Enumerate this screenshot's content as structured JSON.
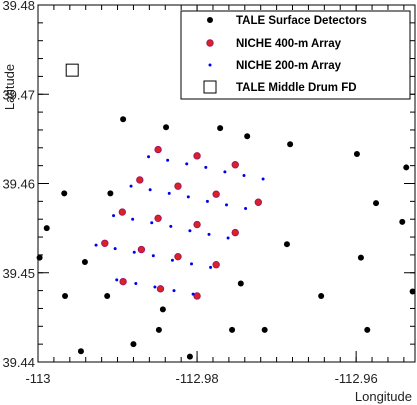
{
  "chart_data": {
    "type": "scatter",
    "xlabel": "Longitude",
    "ylabel": "Latitude",
    "xlim": [
      -113.0,
      -112.9526
    ],
    "ylim": [
      39.44,
      39.48
    ],
    "x_ticks": [
      -113.0,
      -112.98,
      -112.96
    ],
    "x_tick_labels": [
      "-113",
      "-112.98",
      "-112.96"
    ],
    "y_ticks": [
      39.44,
      39.45,
      39.46,
      39.47,
      39.48
    ],
    "y_tick_labels": [
      "39.44",
      "39.45",
      "39.46",
      "39.47",
      "39.48"
    ],
    "legend_position": "top-right",
    "series": [
      {
        "name": "TALE Surface Detectors",
        "marker": "circle",
        "color": "#000000",
        "points": [
          [
            -112.9893,
            39.4672
          ],
          [
            -112.9839,
            39.4663
          ],
          [
            -112.9771,
            39.4662
          ],
          [
            -112.9737,
            39.4653
          ],
          [
            -112.9683,
            39.4644
          ],
          [
            -112.9599,
            39.4633
          ],
          [
            -112.9537,
            39.4618
          ],
          [
            -112.9967,
            39.4589
          ],
          [
            -112.9909,
            39.4589
          ],
          [
            -112.9575,
            39.4578
          ],
          [
            -112.9542,
            39.4557
          ],
          [
            -112.9989,
            39.455
          ],
          [
            -112.9687,
            39.4532
          ],
          [
            -112.9594,
            39.4517
          ],
          [
            -112.9998,
            39.4517
          ],
          [
            -112.9941,
            39.4512
          ],
          [
            -112.9745,
            39.4488
          ],
          [
            -112.9529,
            39.4479
          ],
          [
            -112.9966,
            39.4474
          ],
          [
            -112.9913,
            39.4474
          ],
          [
            -112.9644,
            39.4474
          ],
          [
            -112.9843,
            39.4459
          ],
          [
            -112.9848,
            39.4436
          ],
          [
            -112.9756,
            39.4436
          ],
          [
            -112.9715,
            39.4436
          ],
          [
            -112.9586,
            39.4436
          ],
          [
            -112.988,
            39.442
          ],
          [
            -112.9946,
            39.4412
          ],
          [
            -112.9809,
            39.4406
          ]
        ]
      },
      {
        "name": "NICHE 400-m Array",
        "marker": "circle",
        "color": "#dd2222",
        "outline": "#a01566",
        "points": [
          [
            -112.9849,
            39.4638
          ],
          [
            -112.98,
            39.4631
          ],
          [
            -112.9752,
            39.4621
          ],
          [
            -112.9872,
            39.4604
          ],
          [
            -112.9824,
            39.4597
          ],
          [
            -112.9776,
            39.4588
          ],
          [
            -112.9723,
            39.4579
          ],
          [
            -112.9894,
            39.4568
          ],
          [
            -112.9849,
            39.4561
          ],
          [
            -112.98,
            39.4554
          ],
          [
            -112.9752,
            39.4545
          ],
          [
            -112.9916,
            39.4533
          ],
          [
            -112.987,
            39.4526
          ],
          [
            -112.9824,
            39.4518
          ],
          [
            -112.9776,
            39.4509
          ],
          [
            -112.9893,
            39.449
          ],
          [
            -112.9846,
            39.4482
          ],
          [
            -112.98,
            39.4474
          ]
        ]
      },
      {
        "name": "NICHE 200-m Array",
        "marker": "dot",
        "color": "#0000ee",
        "points": [
          [
            -112.9861,
            39.463
          ],
          [
            -112.9837,
            39.4626
          ],
          [
            -112.9813,
            39.4622
          ],
          [
            -112.9789,
            39.4618
          ],
          [
            -112.9765,
            39.4613
          ],
          [
            -112.9741,
            39.4609
          ],
          [
            -112.9717,
            39.4605
          ],
          [
            -112.9883,
            39.4597
          ],
          [
            -112.9859,
            39.4593
          ],
          [
            -112.9835,
            39.4589
          ],
          [
            -112.9811,
            39.4585
          ],
          [
            -112.9787,
            39.458
          ],
          [
            -112.9763,
            39.4576
          ],
          [
            -112.9739,
            39.4572
          ],
          [
            -112.9905,
            39.4564
          ],
          [
            -112.9881,
            39.456
          ],
          [
            -112.9857,
            39.4556
          ],
          [
            -112.9833,
            39.4552
          ],
          [
            -112.9809,
            39.4547
          ],
          [
            -112.9785,
            39.4543
          ],
          [
            -112.9761,
            39.4539
          ],
          [
            -112.9927,
            39.4531
          ],
          [
            -112.9903,
            39.4527
          ],
          [
            -112.9879,
            39.4523
          ],
          [
            -112.9855,
            39.4519
          ],
          [
            -112.9831,
            39.4514
          ],
          [
            -112.9807,
            39.451
          ],
          [
            -112.9783,
            39.4506
          ],
          [
            -112.9901,
            39.4492
          ],
          [
            -112.9877,
            39.4488
          ],
          [
            -112.9853,
            39.4484
          ],
          [
            -112.9829,
            39.448
          ],
          [
            -112.9805,
            39.4476
          ]
        ]
      },
      {
        "name": "TALE Middle Drum FD",
        "marker": "open-square",
        "color": "#000000",
        "points": [
          [
            -112.9957,
            39.4727
          ]
        ]
      }
    ]
  }
}
